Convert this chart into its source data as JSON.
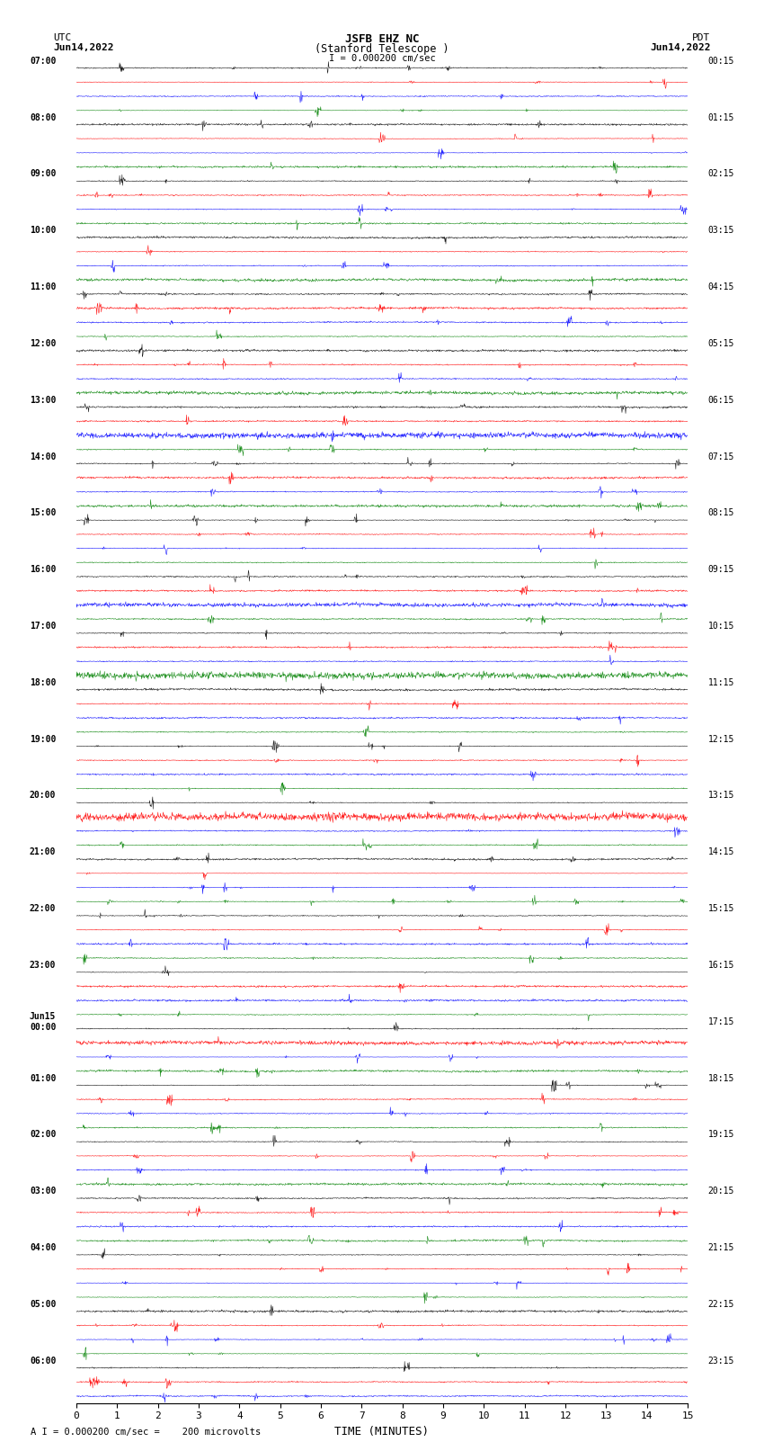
{
  "title_line1": "JSFB EHZ NC",
  "title_line2": "(Stanford Telescope )",
  "scale_label": "I = 0.000200 cm/sec",
  "bottom_label": "A I = 0.000200 cm/sec =    200 microvolts",
  "xlabel": "TIME (MINUTES)",
  "utc_label": "UTC",
  "utc_date": "Jun14,2022",
  "pdt_label": "PDT",
  "pdt_date": "Jun14,2022",
  "left_times": [
    "07:00",
    "",
    "",
    "",
    "08:00",
    "",
    "",
    "",
    "09:00",
    "",
    "",
    "",
    "10:00",
    "",
    "",
    "",
    "11:00",
    "",
    "",
    "",
    "12:00",
    "",
    "",
    "",
    "13:00",
    "",
    "",
    "",
    "14:00",
    "",
    "",
    "",
    "15:00",
    "",
    "",
    "",
    "16:00",
    "",
    "",
    "",
    "17:00",
    "",
    "",
    "",
    "18:00",
    "",
    "",
    "",
    "19:00",
    "",
    "",
    "",
    "20:00",
    "",
    "",
    "",
    "21:00",
    "",
    "",
    "",
    "22:00",
    "",
    "",
    "",
    "23:00",
    "",
    "",
    "",
    "Jun15\n00:00",
    "",
    "",
    "",
    "01:00",
    "",
    "",
    "",
    "02:00",
    "",
    "",
    "",
    "03:00",
    "",
    "",
    "",
    "04:00",
    "",
    "",
    "",
    "05:00",
    "",
    "",
    "",
    "06:00",
    "",
    ""
  ],
  "right_times": [
    "00:15",
    "",
    "",
    "",
    "01:15",
    "",
    "",
    "",
    "02:15",
    "",
    "",
    "",
    "03:15",
    "",
    "",
    "",
    "04:15",
    "",
    "",
    "",
    "05:15",
    "",
    "",
    "",
    "06:15",
    "",
    "",
    "",
    "07:15",
    "",
    "",
    "",
    "08:15",
    "",
    "",
    "",
    "09:15",
    "",
    "",
    "",
    "10:15",
    "",
    "",
    "",
    "11:15",
    "",
    "",
    "",
    "12:15",
    "",
    "",
    "",
    "13:15",
    "",
    "",
    "",
    "14:15",
    "",
    "",
    "",
    "15:15",
    "",
    "",
    "",
    "16:15",
    "",
    "",
    "",
    "17:15",
    "",
    "",
    "",
    "18:15",
    "",
    "",
    "",
    "19:15",
    "",
    "",
    "",
    "20:15",
    "",
    "",
    "",
    "21:15",
    "",
    "",
    "",
    "22:15",
    "",
    "",
    "",
    "23:15",
    "",
    ""
  ],
  "num_rows": 95,
  "colors": [
    "black",
    "red",
    "blue",
    "green"
  ],
  "bg_color": "white",
  "xlim": [
    0,
    15
  ],
  "xticks": [
    0,
    1,
    2,
    3,
    4,
    5,
    6,
    7,
    8,
    9,
    10,
    11,
    12,
    13,
    14,
    15
  ],
  "noise_scale": 0.12,
  "spike_scale": 1.2
}
